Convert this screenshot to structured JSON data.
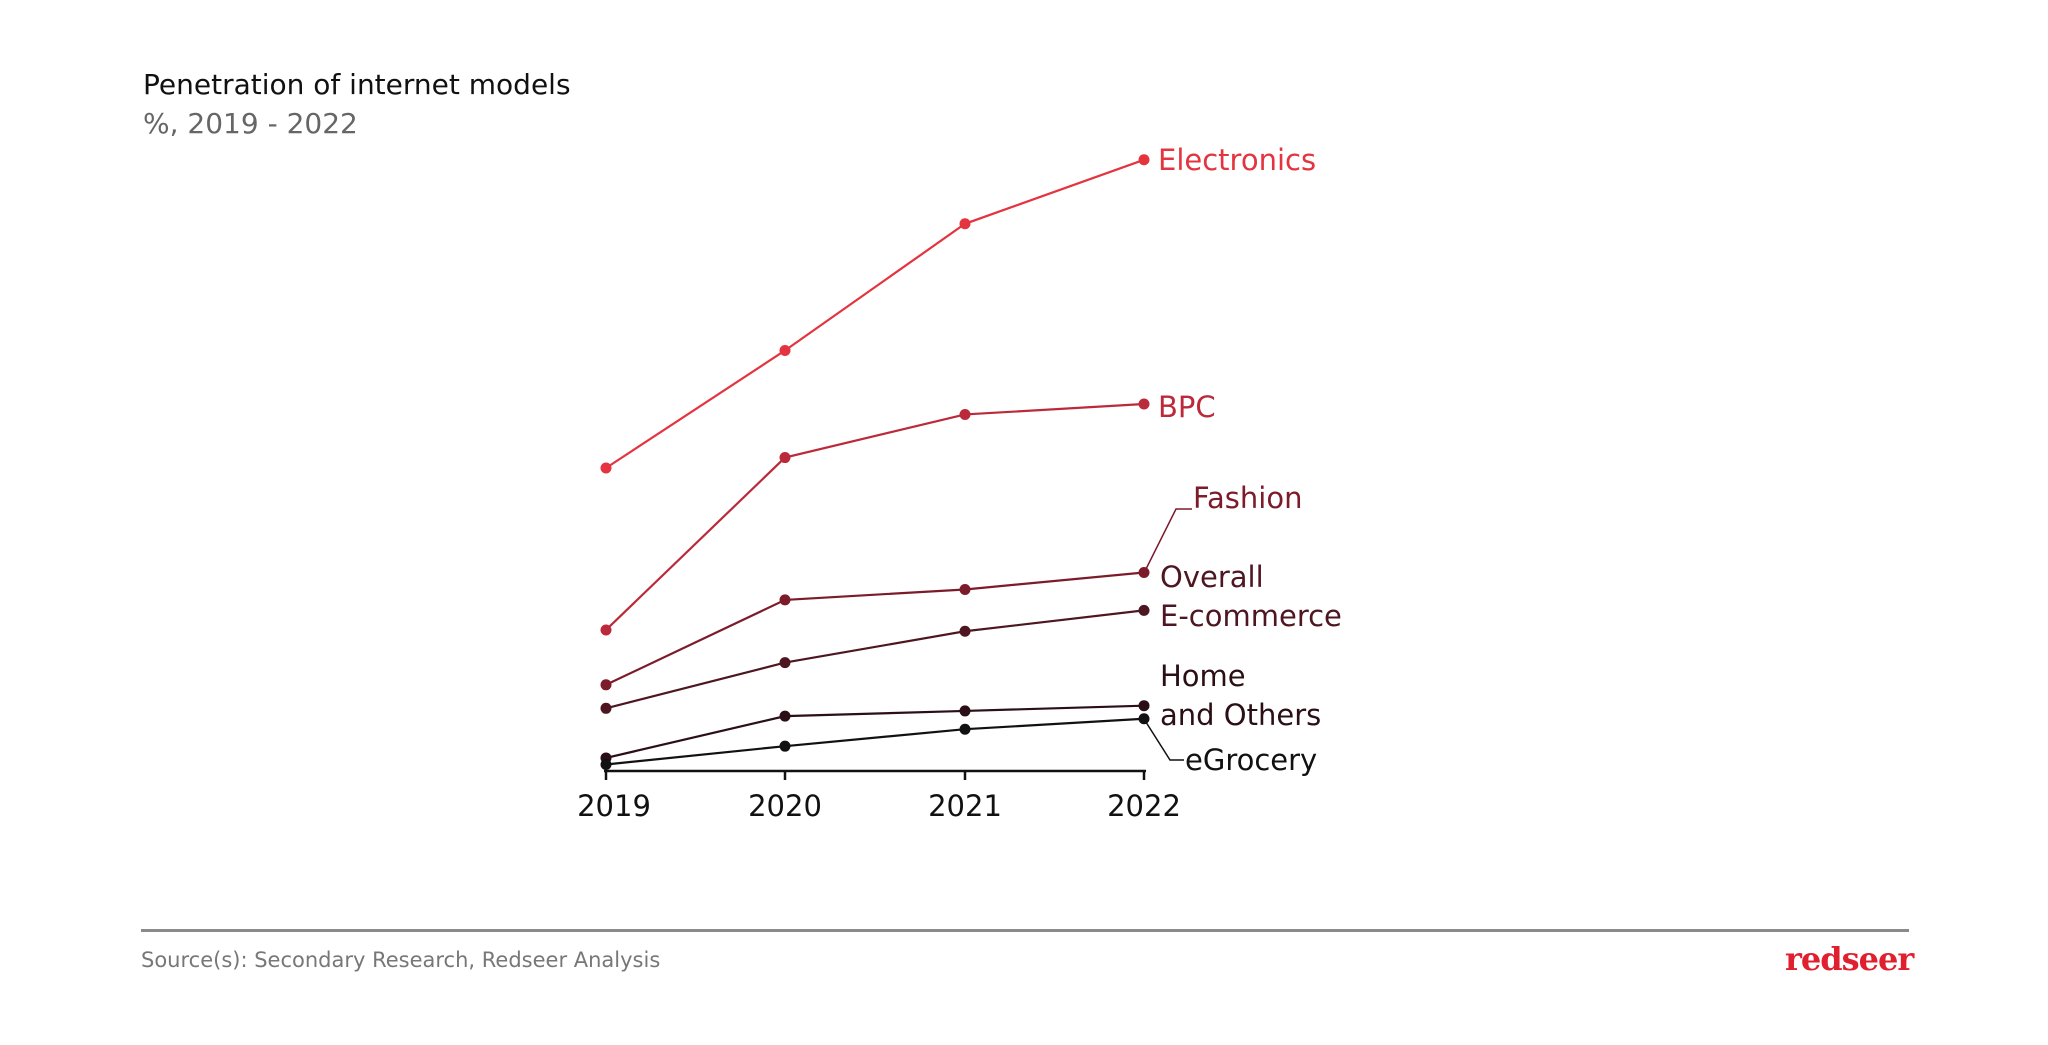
{
  "chart_data": {
    "type": "line",
    "title": "Penetration of internet models",
    "subtitle": "%, 2019 - 2022",
    "categories": [
      "2019",
      "2020",
      "2021",
      "2022"
    ],
    "ylabel": "",
    "xlabel": "",
    "y_axis_shown": false,
    "grid": false,
    "legend": "direct labels at line ends (right)",
    "series": [
      {
        "name": "Electronics",
        "color": "#e3343f",
        "values": [
          23.2,
          32.2,
          41.9,
          46.8
        ]
      },
      {
        "name": "BPC",
        "color": "#bb2a3a",
        "values": [
          10.8,
          24.0,
          27.3,
          28.1
        ]
      },
      {
        "name": "Fashion",
        "color": "#7c1b2a",
        "values": [
          6.6,
          13.1,
          13.9,
          15.2
        ]
      },
      {
        "name": "Overall E-commerce",
        "color": "#4d1620",
        "values": [
          4.8,
          8.3,
          10.7,
          12.3
        ]
      },
      {
        "name": "Home and Others",
        "color": "#2b0f16",
        "values": [
          1.0,
          4.2,
          4.6,
          5.0
        ]
      },
      {
        "name": "eGrocery",
        "color": "#111111",
        "values": [
          0.5,
          1.9,
          3.2,
          4.0
        ]
      }
    ],
    "label_lines": {
      "Overall E-commerce": [
        "Overall",
        "E-commerce"
      ],
      "Home and Others": [
        "Home",
        "and Others"
      ]
    }
  },
  "footer": {
    "source": "Source(s): Secondary Research, Redseer Analysis",
    "logo": "redseer",
    "divider_color": "#8a8a8a"
  }
}
